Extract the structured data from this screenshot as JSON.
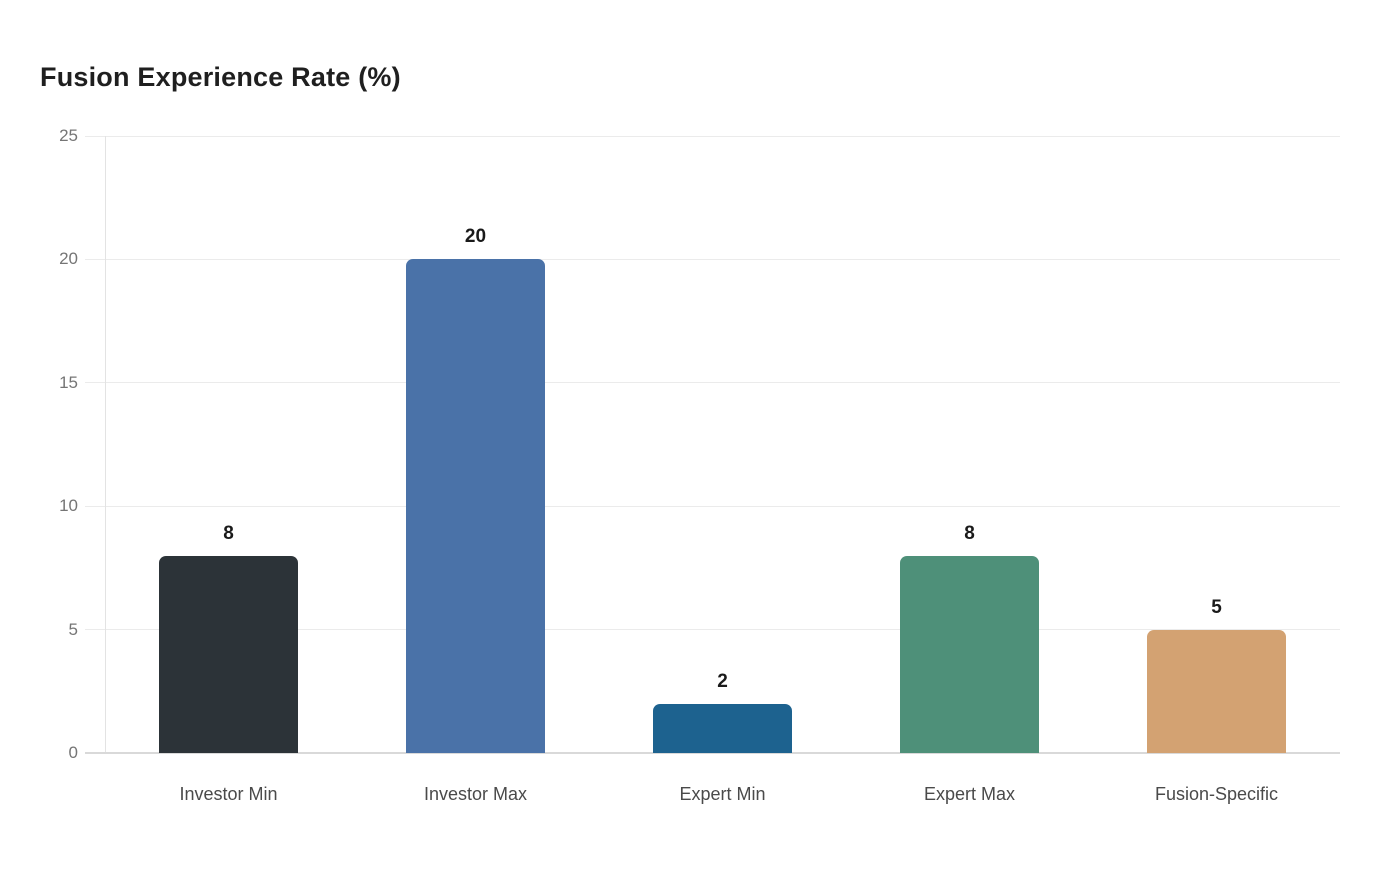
{
  "chart_data": {
    "type": "bar",
    "title": "Fusion Experience Rate (%)",
    "categories": [
      "Investor Min",
      "Investor Max",
      "Expert Min",
      "Expert Max",
      "Fusion-Specific"
    ],
    "values": [
      8,
      20,
      2,
      8,
      5
    ],
    "value_labels": [
      "8",
      "20",
      "2",
      "8",
      "5"
    ],
    "bar_colors": [
      "#2c3338",
      "#4a72a8",
      "#1d628f",
      "#4e9079",
      "#d3a272"
    ],
    "yticks": [
      0,
      5,
      10,
      15,
      20,
      25
    ],
    "ylim": [
      0,
      25
    ],
    "xlabel": "",
    "ylabel": "",
    "grid": "horizontal",
    "legend": "none",
    "colors": {
      "title": "#1f1f1f",
      "value_label": "#1a1a1a",
      "ytick_label": "#757575",
      "category_label": "#4a4a4a",
      "gridline": "#ebebeb",
      "x_axis_line": "#d9d9d9",
      "y_axis_line": "#e3e3e3",
      "background": "#ffffff"
    }
  }
}
